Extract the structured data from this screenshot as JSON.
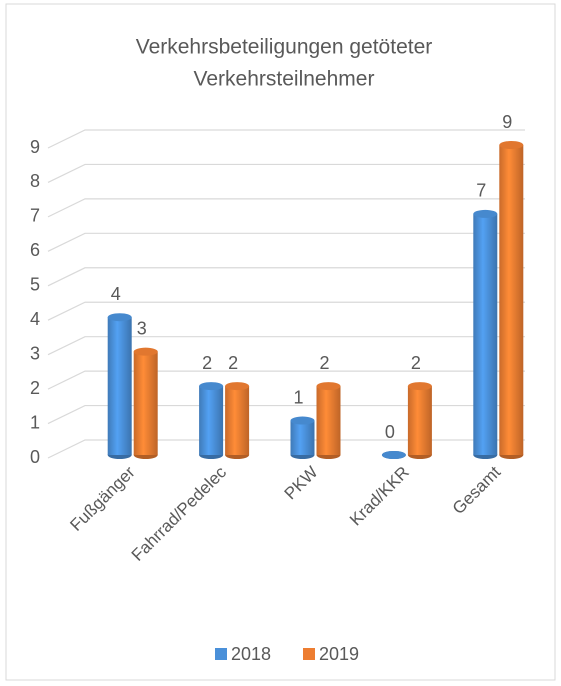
{
  "chart_data": {
    "type": "bar",
    "title": [
      "Verkehrsbeteiligungen getöteter",
      "Verkehrsteilnehmer"
    ],
    "categories": [
      "Fußgänger",
      "Fahrrad/Pedelec",
      "PKW",
      "Krad/KKR",
      "Gesamt"
    ],
    "series": [
      {
        "name": "2018",
        "color": "#4a90d9",
        "values": [
          4,
          2,
          1,
          0,
          7
        ]
      },
      {
        "name": "2019",
        "color": "#ed7d31",
        "values": [
          3,
          2,
          2,
          2,
          9
        ]
      }
    ],
    "ylim": [
      0,
      9
    ],
    "yticks": [
      0,
      1,
      2,
      3,
      4,
      5,
      6,
      7,
      8,
      9
    ],
    "grid": true,
    "legend": "bottom"
  }
}
